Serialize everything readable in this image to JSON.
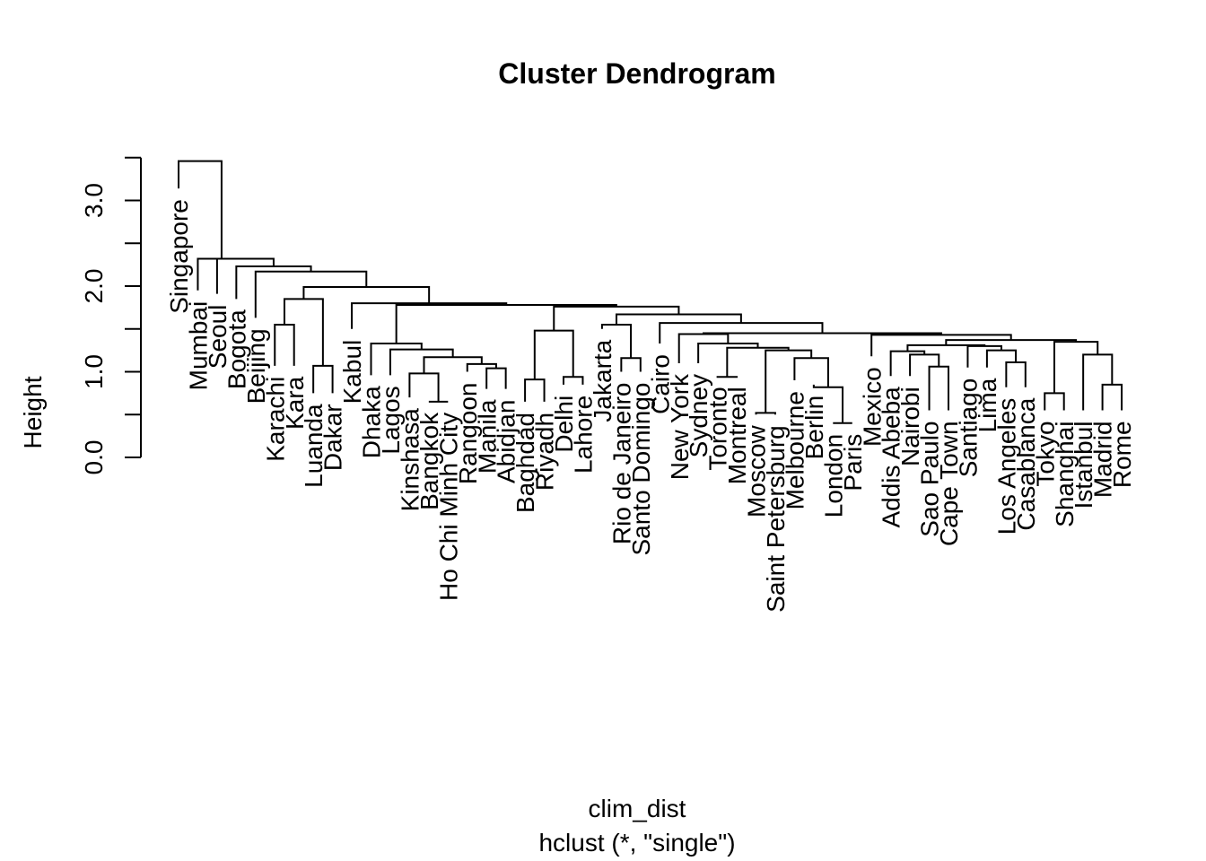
{
  "chart_data": {
    "type": "dendrogram",
    "title": "Cluster Dendrogram",
    "xlabel": "clim_dist",
    "sublabel": "hclust (*, \"single\")",
    "ylabel": "Height",
    "ylim": [
      0,
      3.5
    ],
    "yticks": [
      0.0,
      0.5,
      1.0,
      1.5,
      2.0,
      2.5,
      3.0,
      3.5
    ],
    "ytick_labels": [
      "0.0",
      "1.0",
      "2.0",
      "3.0"
    ],
    "ytick_label_values": [
      0.0,
      1.0,
      2.0,
      3.0
    ],
    "leaves": [
      "Singapore",
      "Mumbai",
      "Seoul",
      "Bogota",
      "Beijing",
      "Karachi",
      "Kara",
      "Luanda",
      "Dakar",
      "Kabul",
      "Dhaka",
      "Lagos",
      "Kinshasa",
      "Bangkok",
      "Ho Chi Minh City",
      "Rangoon",
      "Manila",
      "Abidjan",
      "Baghdad",
      "Riyadh",
      "Delhi",
      "Lahore",
      "Jakarta",
      "Rio de Janeiro",
      "Santo Domingo",
      "Cairo",
      "New York",
      "Sydney",
      "Toronto",
      "Montreal",
      "Moscow",
      "Saint Petersburg",
      "Melbourne",
      "Berlin",
      "London",
      "Paris",
      "Mexico",
      "Addis Abeba",
      "Nairobi",
      "Sao Paulo",
      "Cape Town",
      "Santiago",
      "Lima",
      "Los Angeles",
      "Casablanca",
      "Tokyo",
      "Shanghai",
      "Istanbul",
      "Madrid",
      "Rome"
    ],
    "leaf_heights": [
      3.14,
      1.95,
      1.91,
      1.85,
      1.63,
      1.07,
      1.07,
      0.75,
      0.75,
      1.5,
      0.96,
      0.96,
      0.7,
      0.65,
      0.65,
      1.0,
      0.8,
      0.8,
      0.65,
      0.65,
      0.85,
      0.85,
      1.5,
      1.0,
      1.0,
      1.33,
      1.1,
      1.1,
      0.95,
      0.95,
      0.5,
      0.5,
      0.9,
      0.85,
      0.4,
      0.4,
      1.18,
      0.95,
      0.95,
      0.55,
      0.55,
      1.05,
      1.05,
      0.82,
      0.82,
      0.55,
      0.55,
      0.55,
      0.55,
      0.55
    ],
    "merges": [
      {
        "a": -35,
        "b": -36,
        "h": 0.4
      },
      {
        "a": -31,
        "b": -32,
        "h": 0.52
      },
      {
        "a": -14,
        "b": -15,
        "h": 0.65
      },
      {
        "a": -46,
        "b": -47,
        "h": 0.75
      },
      {
        "a": -34,
        "b": 1,
        "h": 0.82
      },
      {
        "a": -49,
        "b": -50,
        "h": 0.85
      },
      {
        "a": -19,
        "b": -20,
        "h": 0.91
      },
      {
        "a": -21,
        "b": -22,
        "h": 0.94
      },
      {
        "a": -29,
        "b": -30,
        "h": 0.94
      },
      {
        "a": -13,
        "b": 3,
        "h": 0.98
      },
      {
        "a": -17,
        "b": -18,
        "h": 1.04
      },
      {
        "a": -40,
        "b": -41,
        "h": 1.06
      },
      {
        "a": -8,
        "b": -9,
        "h": 1.07
      },
      {
        "a": -16,
        "b": 11,
        "h": 1.09
      },
      {
        "a": -45,
        "b": -44,
        "h": 1.11
      },
      {
        "a": -24,
        "b": -25,
        "h": 1.16
      },
      {
        "a": -33,
        "b": 5,
        "h": 1.16
      },
      {
        "a": 10,
        "b": 14,
        "h": 1.17
      },
      {
        "a": -48,
        "b": 6,
        "h": 1.2
      },
      {
        "a": -39,
        "b": 12,
        "h": 1.2
      },
      {
        "a": -38,
        "b": 20,
        "h": 1.24
      },
      {
        "a": -43,
        "b": 15,
        "h": 1.25
      },
      {
        "a": 2,
        "b": 17,
        "h": 1.25
      },
      {
        "a": -12,
        "b": 18,
        "h": 1.26
      },
      {
        "a": 9,
        "b": 23,
        "h": 1.28
      },
      {
        "a": -42,
        "b": 22,
        "h": 1.3
      },
      {
        "a": -11,
        "b": 24,
        "h": 1.33
      },
      {
        "a": -28,
        "b": 25,
        "h": 1.33
      },
      {
        "a": 21,
        "b": 26,
        "h": 1.31
      },
      {
        "a": 4,
        "b": 19,
        "h": 1.35
      },
      {
        "a": 29,
        "b": 30,
        "h": 1.37
      },
      {
        "a": -37,
        "b": 31,
        "h": 1.43
      },
      {
        "a": -27,
        "b": 28,
        "h": 1.44
      },
      {
        "a": 33,
        "b": 32,
        "h": 1.45
      },
      {
        "a": 7,
        "b": 8,
        "h": 1.48
      },
      {
        "a": -6,
        "b": -7,
        "h": 1.55
      },
      {
        "a": -23,
        "b": 16,
        "h": 1.55
      },
      {
        "a": -26,
        "b": 34,
        "h": 1.57
      },
      {
        "a": 37,
        "b": 38,
        "h": 1.67
      },
      {
        "a": 35,
        "b": 39,
        "h": 1.76
      },
      {
        "a": 27,
        "b": 40,
        "h": 1.78
      },
      {
        "a": -10,
        "b": 41,
        "h": 1.8
      },
      {
        "a": 36,
        "b": 13,
        "h": 1.85
      },
      {
        "a": 43,
        "b": 42,
        "h": 1.99
      },
      {
        "a": -5,
        "b": 44,
        "h": 2.17
      },
      {
        "a": -4,
        "b": 45,
        "h": 2.23
      },
      {
        "a": -3,
        "b": 46,
        "h": 2.32
      },
      {
        "a": -2,
        "b": 47,
        "h": 2.32
      },
      {
        "a": -1,
        "b": 48,
        "h": 3.46
      }
    ]
  }
}
